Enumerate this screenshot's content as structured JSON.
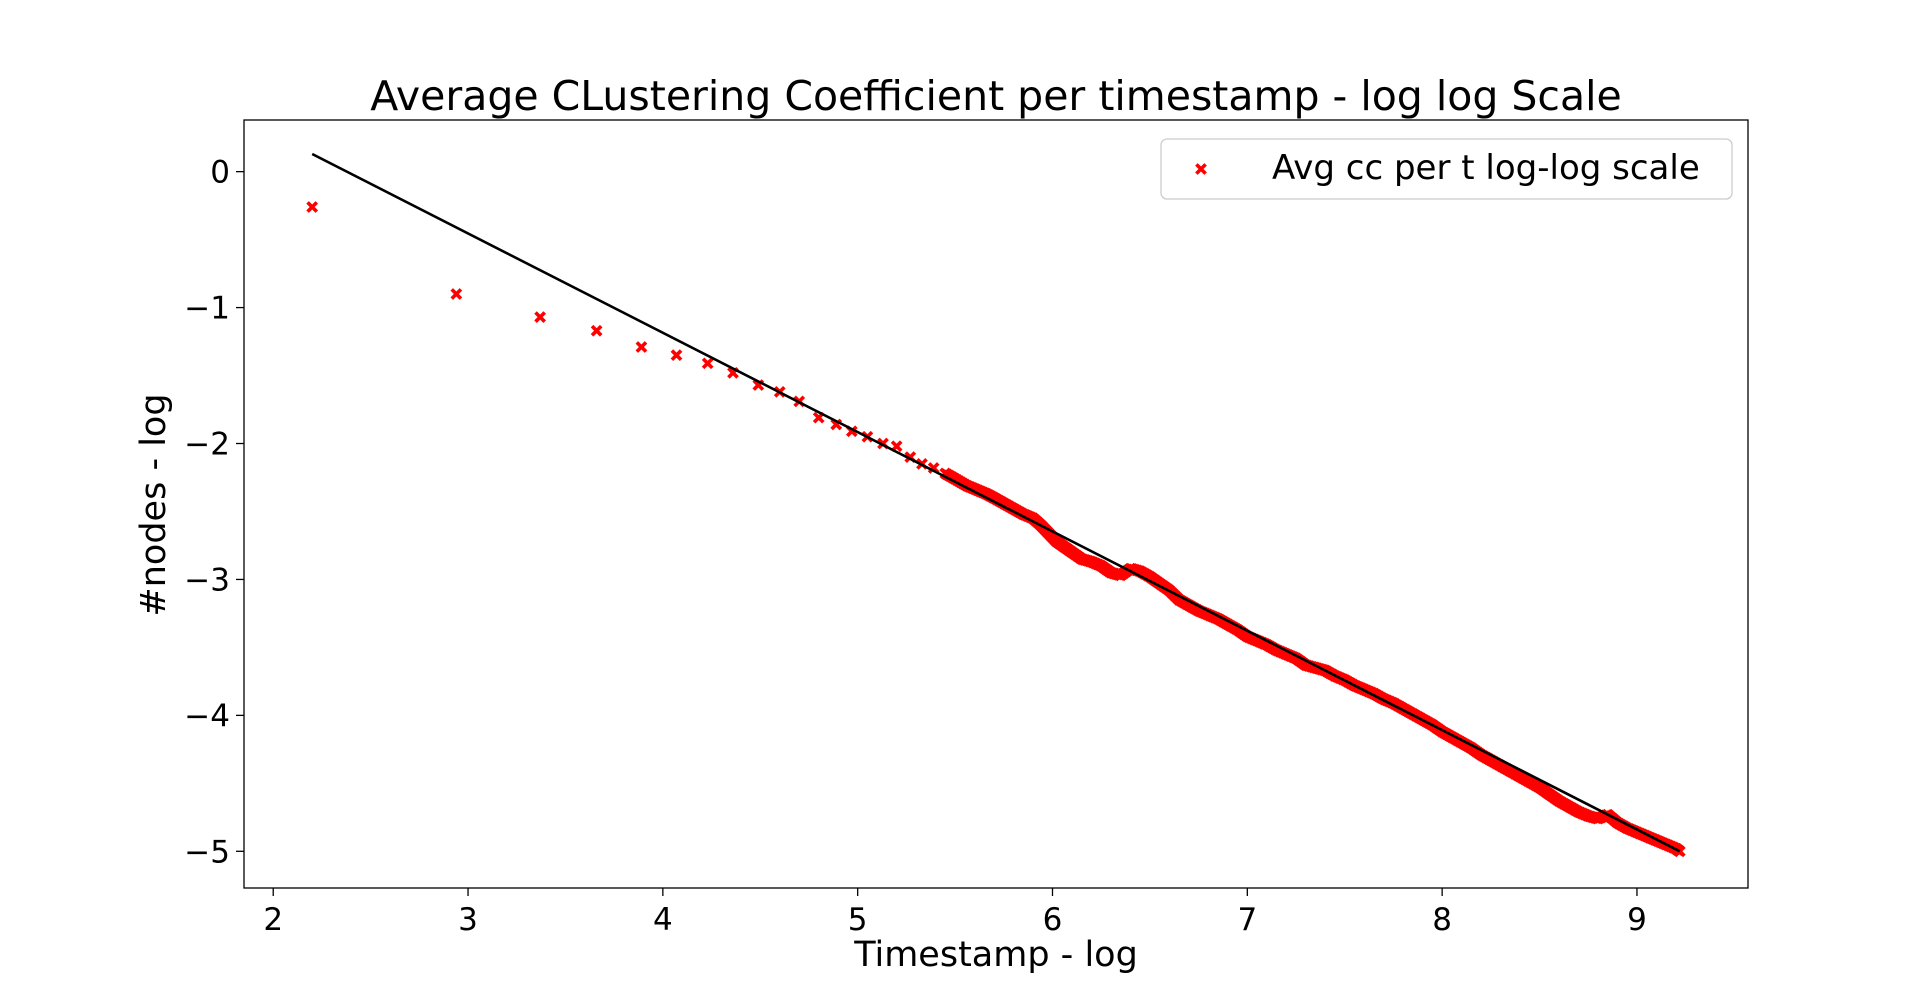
{
  "chart_data": {
    "type": "scatter",
    "title": "Average CLustering Coefficient per timestamp - log log Scale",
    "xlabel": "Timestamp - log",
    "ylabel": "#nodes - log",
    "xlim": [
      1.85,
      9.57
    ],
    "ylim": [
      -5.27,
      0.38
    ],
    "xticks": [
      2,
      3,
      4,
      5,
      6,
      7,
      8,
      9
    ],
    "yticks": [
      0,
      -1,
      -2,
      -3,
      -4,
      -5
    ],
    "ytick_labels": [
      "0",
      "−1",
      "−2",
      "−3",
      "−4",
      "−5"
    ],
    "grid": false,
    "legend_position": "top-right",
    "series": [
      {
        "name": "Avg cc per t log-log scale",
        "marker": "x",
        "color": "#ff0000",
        "x": [
          2.2,
          2.94,
          3.37,
          3.66,
          3.89,
          4.07,
          4.23,
          4.36,
          4.49,
          4.6,
          4.7,
          4.8,
          4.89,
          4.97,
          5.05,
          5.13,
          5.2,
          5.27,
          5.33,
          5.39,
          5.45,
          5.5,
          5.56,
          5.61,
          5.66,
          5.7,
          5.75,
          5.8,
          5.85,
          5.9,
          5.94,
          5.98,
          6.02,
          6.06,
          6.1,
          6.15,
          6.2,
          6.25,
          6.3,
          6.35,
          6.4,
          6.45,
          6.5,
          6.55,
          6.6,
          6.65,
          6.7,
          6.75,
          6.8,
          6.85,
          6.9,
          6.95,
          7.0,
          7.05,
          7.1,
          7.15,
          7.2,
          7.25,
          7.3,
          7.35,
          7.4,
          7.45,
          7.5,
          7.55,
          7.6,
          7.65,
          7.7,
          7.75,
          7.8,
          7.85,
          7.9,
          7.95,
          8.0,
          8.05,
          8.1,
          8.15,
          8.2,
          8.25,
          8.3,
          8.35,
          8.4,
          8.45,
          8.5,
          8.55,
          8.6,
          8.65,
          8.7,
          8.75,
          8.8,
          8.85,
          8.9,
          8.95,
          9.0,
          9.05,
          9.1,
          9.15,
          9.2,
          9.22
        ],
        "y": [
          -0.26,
          -0.9,
          -1.07,
          -1.17,
          -1.29,
          -1.35,
          -1.41,
          -1.48,
          -1.57,
          -1.62,
          -1.69,
          -1.81,
          -1.86,
          -1.91,
          -1.95,
          -2.0,
          -2.02,
          -2.1,
          -2.15,
          -2.18,
          -2.22,
          -2.26,
          -2.31,
          -2.34,
          -2.37,
          -2.4,
          -2.44,
          -2.48,
          -2.52,
          -2.55,
          -2.6,
          -2.66,
          -2.72,
          -2.76,
          -2.8,
          -2.85,
          -2.87,
          -2.9,
          -2.95,
          -2.97,
          -2.92,
          -2.94,
          -2.98,
          -3.03,
          -3.08,
          -3.15,
          -3.19,
          -3.23,
          -3.26,
          -3.29,
          -3.33,
          -3.37,
          -3.42,
          -3.45,
          -3.48,
          -3.52,
          -3.55,
          -3.58,
          -3.63,
          -3.65,
          -3.67,
          -3.71,
          -3.74,
          -3.78,
          -3.81,
          -3.84,
          -3.88,
          -3.91,
          -3.95,
          -3.99,
          -4.03,
          -4.07,
          -4.12,
          -4.16,
          -4.2,
          -4.24,
          -4.29,
          -4.33,
          -4.37,
          -4.41,
          -4.45,
          -4.49,
          -4.53,
          -4.58,
          -4.63,
          -4.67,
          -4.71,
          -4.74,
          -4.76,
          -4.73,
          -4.79,
          -4.83,
          -4.86,
          -4.89,
          -4.92,
          -4.95,
          -4.98,
          -5.0
        ]
      }
    ],
    "fit_line": {
      "color": "#000000",
      "x": [
        2.2,
        9.22
      ],
      "y": [
        0.13,
        -5.0
      ]
    }
  }
}
